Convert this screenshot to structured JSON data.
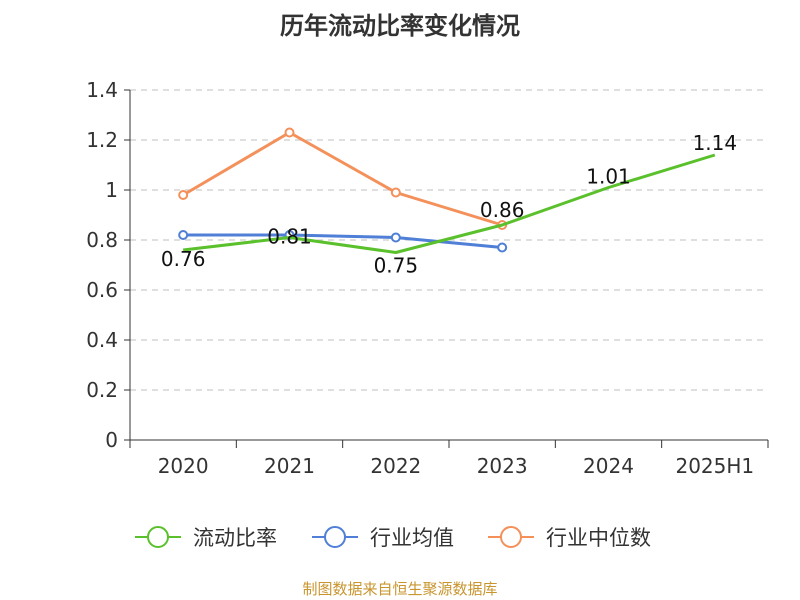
{
  "title": "历年流动比率变化情况",
  "footer": "制图数据来自恒生聚源数据库",
  "chart_data": {
    "type": "line",
    "categories": [
      "2020",
      "2021",
      "2022",
      "2023",
      "2024",
      "2025H1"
    ],
    "ylim": [
      0,
      1.4
    ],
    "yticks": [
      "0",
      "0.2",
      "0.4",
      "0.6",
      "0.8",
      "1",
      "1.2",
      "1.4"
    ],
    "grid": true,
    "legend_position": "bottom",
    "series": [
      {
        "name": "流动比率",
        "color": "#5ac12c",
        "values": [
          0.76,
          0.81,
          0.75,
          0.86,
          1.01,
          1.14
        ],
        "labels": [
          "0.76",
          "0.81",
          "0.75",
          "0.86",
          "1.01",
          "1.14"
        ],
        "markers": false
      },
      {
        "name": "行业均值",
        "color": "#4f7fd6",
        "values": [
          0.82,
          0.82,
          0.81,
          0.77,
          null,
          null
        ],
        "markers": true
      },
      {
        "name": "行业中位数",
        "color": "#f4905a",
        "values": [
          0.98,
          1.23,
          0.99,
          0.86,
          null,
          null
        ],
        "markers": true
      }
    ]
  }
}
